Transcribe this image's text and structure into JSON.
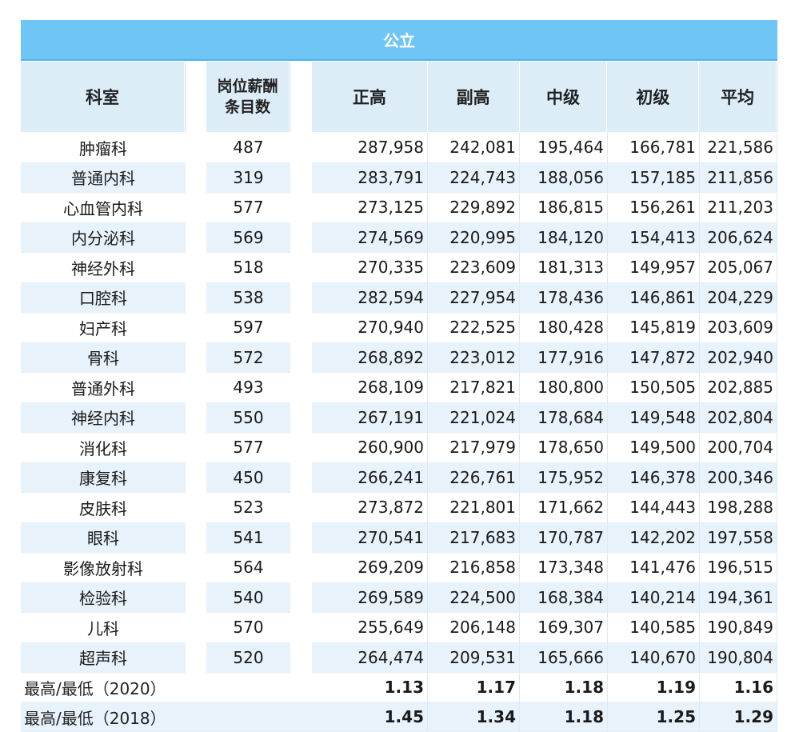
{
  "title": "公立",
  "headers": {
    "dept": "科室",
    "count_line1": "岗位薪酬",
    "count_line2": "条目数",
    "levels": [
      "正高",
      "副高",
      "中级",
      "初级",
      "平均"
    ]
  },
  "rows": [
    {
      "dept": "肿瘤科",
      "count": "487",
      "values": [
        "287,958",
        "242,081",
        "195,464",
        "166,781",
        "221,586"
      ]
    },
    {
      "dept": "普通内科",
      "count": "319",
      "values": [
        "283,791",
        "224,743",
        "188,056",
        "157,185",
        "211,856"
      ]
    },
    {
      "dept": "心血管内科",
      "count": "577",
      "values": [
        "273,125",
        "229,892",
        "186,815",
        "156,261",
        "211,203"
      ]
    },
    {
      "dept": "内分泌科",
      "count": "569",
      "values": [
        "274,569",
        "220,995",
        "184,120",
        "154,413",
        "206,624"
      ]
    },
    {
      "dept": "神经外科",
      "count": "518",
      "values": [
        "270,335",
        "223,609",
        "181,313",
        "149,957",
        "205,067"
      ]
    },
    {
      "dept": "口腔科",
      "count": "538",
      "values": [
        "282,594",
        "227,954",
        "178,436",
        "146,861",
        "204,229"
      ]
    },
    {
      "dept": "妇产科",
      "count": "597",
      "values": [
        "270,940",
        "222,525",
        "180,428",
        "145,819",
        "203,609"
      ]
    },
    {
      "dept": "骨科",
      "count": "572",
      "values": [
        "268,892",
        "223,012",
        "177,916",
        "147,872",
        "202,940"
      ]
    },
    {
      "dept": "普通外科",
      "count": "493",
      "values": [
        "268,109",
        "217,821",
        "180,800",
        "150,505",
        "202,885"
      ]
    },
    {
      "dept": "神经内科",
      "count": "550",
      "values": [
        "267,191",
        "221,024",
        "178,684",
        "149,548",
        "202,804"
      ]
    },
    {
      "dept": "消化科",
      "count": "577",
      "values": [
        "260,900",
        "217,979",
        "178,650",
        "149,500",
        "200,704"
      ]
    },
    {
      "dept": "康复科",
      "count": "450",
      "values": [
        "266,241",
        "226,761",
        "175,952",
        "146,378",
        "200,346"
      ]
    },
    {
      "dept": "皮肤科",
      "count": "523",
      "values": [
        "273,872",
        "221,801",
        "171,662",
        "144,443",
        "198,288"
      ]
    },
    {
      "dept": "眼科",
      "count": "541",
      "values": [
        "270,541",
        "217,683",
        "170,787",
        "142,202",
        "197,558"
      ]
    },
    {
      "dept": "影像放射科",
      "count": "564",
      "values": [
        "269,209",
        "216,858",
        "173,348",
        "141,476",
        "196,515"
      ]
    },
    {
      "dept": "检验科",
      "count": "540",
      "values": [
        "269,589",
        "224,500",
        "168,384",
        "140,214",
        "194,361"
      ]
    },
    {
      "dept": "儿科",
      "count": "570",
      "values": [
        "255,649",
        "206,148",
        "169,307",
        "140,585",
        "190,849"
      ]
    },
    {
      "dept": "超声科",
      "count": "520",
      "values": [
        "264,474",
        "209,531",
        "165,666",
        "140,670",
        "190,804"
      ]
    }
  ],
  "summary": [
    {
      "label": "最高/最低（2020）",
      "values": [
        "1.13",
        "1.17",
        "1.18",
        "1.19",
        "1.16"
      ]
    },
    {
      "label": "最高/最低（2018）",
      "values": [
        "1.45",
        "1.34",
        "1.18",
        "1.25",
        "1.29"
      ]
    }
  ],
  "colors": {
    "title_bg": "#6fc6f5",
    "header_bg": "#dcedf8",
    "alt_row": "#e7f2fb"
  }
}
